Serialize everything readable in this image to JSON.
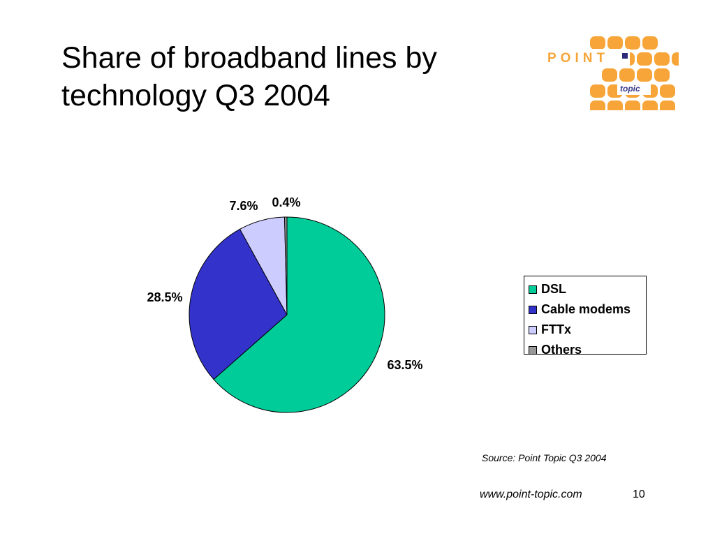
{
  "slide": {
    "title_line1": "Share of broadband lines by",
    "title_line2": "technology Q3 2004",
    "source": "Source: Point Topic Q3 2004",
    "footer_url": "www.point-topic.com",
    "page_number": "10"
  },
  "logo": {
    "brand": "POINT",
    "sub": "topic",
    "color": "#f7a538"
  },
  "chart_data": {
    "type": "pie",
    "title": "",
    "categories": [
      "DSL",
      "Cable modems",
      "FTTx",
      "Others"
    ],
    "values": [
      63.5,
      28.5,
      7.6,
      0.4
    ],
    "labels": [
      "63.5%",
      "28.5%",
      "7.6%",
      "0.4%"
    ],
    "colors": [
      "#00cc99",
      "#3333cc",
      "#ccccff",
      "#999999"
    ],
    "legend_position": "right"
  }
}
